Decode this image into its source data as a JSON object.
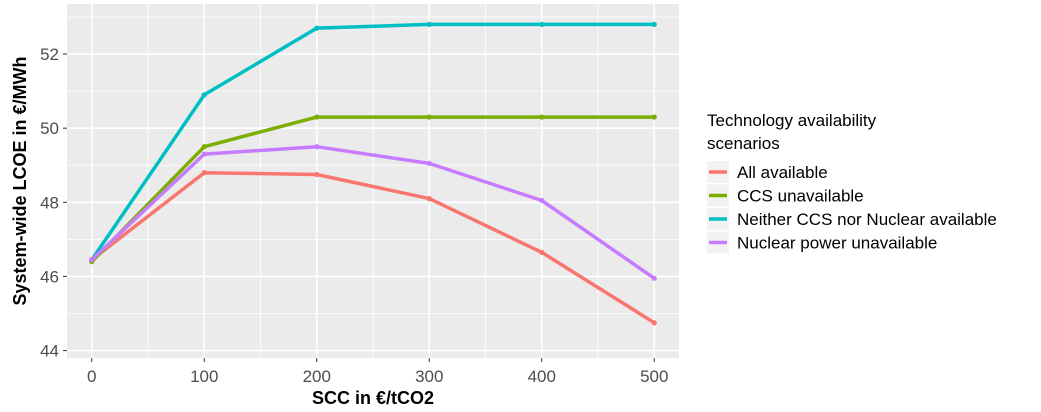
{
  "chart_data": {
    "type": "line",
    "title": "",
    "xlabel": "SCC in €/tCO2",
    "ylabel": "System-wide LCOE in €/MWh",
    "x": [
      0,
      100,
      200,
      300,
      400,
      500
    ],
    "x_ticks": [
      "0",
      "100",
      "200",
      "300",
      "400",
      "500"
    ],
    "y_ticks": [
      "44",
      "46",
      "48",
      "50",
      "52"
    ],
    "xlim": [
      -22,
      522
    ],
    "ylim": [
      43.8,
      53.35
    ],
    "grid": true,
    "legend_position": "right",
    "legend_title": [
      "Technology availability",
      "scenarios"
    ],
    "series": [
      {
        "name": "All available",
        "color": "#F8766D",
        "values": [
          46.45,
          48.8,
          48.75,
          48.1,
          46.65,
          44.75
        ]
      },
      {
        "name": "CCS unavailable",
        "color": "#7CAE00",
        "values": [
          46.4,
          49.5,
          50.3,
          50.3,
          50.3,
          50.3
        ]
      },
      {
        "name": "Neither CCS nor Nuclear available",
        "color": "#00BFC4",
        "values": [
          46.45,
          50.9,
          52.7,
          52.8,
          52.8,
          52.8
        ]
      },
      {
        "name": "Nuclear power unavailable",
        "color": "#C77CFF",
        "values": [
          46.45,
          49.3,
          49.5,
          49.05,
          48.05,
          45.95
        ]
      }
    ]
  }
}
